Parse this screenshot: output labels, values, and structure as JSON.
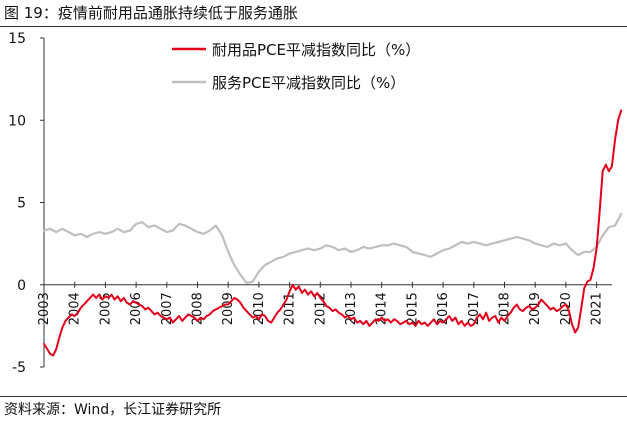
{
  "figure": {
    "title": "图 19：疫情前耐用品通胀持续低于服务通胀",
    "source": "资料来源：Wind，长江证券研究所"
  },
  "chart_data": {
    "type": "line",
    "ylim": [
      -5,
      15
    ],
    "y_ticks": [
      "15",
      "10",
      "5",
      "0",
      "-5"
    ],
    "x_ticks": [
      "2003",
      "2004",
      "2005",
      "2006",
      "2007",
      "2008",
      "2009",
      "2010",
      "2011",
      "2012",
      "2013",
      "2014",
      "2015",
      "2016",
      "2017",
      "2018",
      "2019",
      "2020",
      "2021"
    ],
    "grid": false,
    "legend_position": "top-center",
    "series": [
      {
        "name": "耐用品PCE平减指数同比（%）",
        "color": "#e3001b",
        "points": [
          [
            2003.0,
            -3.6
          ],
          [
            2003.1,
            -3.9
          ],
          [
            2003.2,
            -4.2
          ],
          [
            2003.3,
            -4.3
          ],
          [
            2003.4,
            -3.9
          ],
          [
            2003.5,
            -3.2
          ],
          [
            2003.6,
            -2.6
          ],
          [
            2003.7,
            -2.2
          ],
          [
            2003.8,
            -2.0
          ],
          [
            2003.9,
            -1.8
          ],
          [
            2004.0,
            -1.9
          ],
          [
            2004.1,
            -1.7
          ],
          [
            2004.2,
            -1.4
          ],
          [
            2004.3,
            -1.2
          ],
          [
            2004.4,
            -1.0
          ],
          [
            2004.5,
            -0.8
          ],
          [
            2004.6,
            -0.6
          ],
          [
            2004.7,
            -0.8
          ],
          [
            2004.8,
            -0.6
          ],
          [
            2004.9,
            -0.9
          ],
          [
            2005.0,
            -0.7
          ],
          [
            2005.1,
            -0.8
          ],
          [
            2005.2,
            -0.6
          ],
          [
            2005.3,
            -0.9
          ],
          [
            2005.4,
            -0.7
          ],
          [
            2005.5,
            -1.0
          ],
          [
            2005.6,
            -0.8
          ],
          [
            2005.7,
            -1.1
          ],
          [
            2005.8,
            -1.2
          ],
          [
            2005.9,
            -1.0
          ],
          [
            2006.0,
            -1.1
          ],
          [
            2006.1,
            -1.2
          ],
          [
            2006.2,
            -1.3
          ],
          [
            2006.3,
            -1.5
          ],
          [
            2006.4,
            -1.4
          ],
          [
            2006.5,
            -1.6
          ],
          [
            2006.6,
            -1.8
          ],
          [
            2006.7,
            -1.7
          ],
          [
            2006.8,
            -1.9
          ],
          [
            2006.9,
            -2.0
          ],
          [
            2007.0,
            -2.1
          ],
          [
            2007.1,
            -2.0
          ],
          [
            2007.2,
            -2.3
          ],
          [
            2007.3,
            -2.1
          ],
          [
            2007.4,
            -1.9
          ],
          [
            2007.5,
            -2.2
          ],
          [
            2007.6,
            -2.0
          ],
          [
            2007.7,
            -1.8
          ],
          [
            2007.8,
            -1.9
          ],
          [
            2007.9,
            -2.0
          ],
          [
            2008.0,
            -2.2
          ],
          [
            2008.1,
            -2.0
          ],
          [
            2008.2,
            -2.1
          ],
          [
            2008.3,
            -1.9
          ],
          [
            2008.4,
            -1.8
          ],
          [
            2008.5,
            -1.6
          ],
          [
            2008.6,
            -1.5
          ],
          [
            2008.7,
            -1.4
          ],
          [
            2008.8,
            -1.3
          ],
          [
            2008.9,
            -1.2
          ],
          [
            2009.0,
            -1.2
          ],
          [
            2009.1,
            -1.0
          ],
          [
            2009.2,
            -0.8
          ],
          [
            2009.3,
            -0.9
          ],
          [
            2009.4,
            -1.1
          ],
          [
            2009.5,
            -1.4
          ],
          [
            2009.6,
            -1.6
          ],
          [
            2009.7,
            -1.8
          ],
          [
            2009.8,
            -2.0
          ],
          [
            2009.9,
            -1.9
          ],
          [
            2010.0,
            -2.1
          ],
          [
            2010.1,
            -1.8
          ],
          [
            2010.2,
            -1.9
          ],
          [
            2010.3,
            -2.2
          ],
          [
            2010.4,
            -2.3
          ],
          [
            2010.5,
            -2.0
          ],
          [
            2010.6,
            -1.7
          ],
          [
            2010.7,
            -1.5
          ],
          [
            2010.8,
            -1.2
          ],
          [
            2010.9,
            -0.9
          ],
          [
            2011.0,
            -0.4
          ],
          [
            2011.1,
            0.0
          ],
          [
            2011.2,
            -0.3
          ],
          [
            2011.3,
            -0.1
          ],
          [
            2011.4,
            -0.5
          ],
          [
            2011.5,
            -0.3
          ],
          [
            2011.6,
            -0.6
          ],
          [
            2011.7,
            -0.4
          ],
          [
            2011.8,
            -0.7
          ],
          [
            2011.9,
            -0.5
          ],
          [
            2012.0,
            -0.8
          ],
          [
            2012.1,
            -1.0
          ],
          [
            2012.2,
            -1.3
          ],
          [
            2012.3,
            -1.4
          ],
          [
            2012.4,
            -1.6
          ],
          [
            2012.5,
            -1.5
          ],
          [
            2012.6,
            -1.7
          ],
          [
            2012.7,
            -1.8
          ],
          [
            2012.8,
            -2.0
          ],
          [
            2012.9,
            -1.9
          ],
          [
            2013.0,
            -2.1
          ],
          [
            2013.1,
            -2.0
          ],
          [
            2013.2,
            -2.3
          ],
          [
            2013.3,
            -2.2
          ],
          [
            2013.4,
            -2.4
          ],
          [
            2013.5,
            -2.2
          ],
          [
            2013.6,
            -2.5
          ],
          [
            2013.7,
            -2.3
          ],
          [
            2013.8,
            -2.1
          ],
          [
            2013.9,
            -2.2
          ],
          [
            2014.0,
            -2.0
          ],
          [
            2014.1,
            -2.2
          ],
          [
            2014.2,
            -2.1
          ],
          [
            2014.3,
            -2.3
          ],
          [
            2014.4,
            -2.1
          ],
          [
            2014.5,
            -2.2
          ],
          [
            2014.6,
            -2.4
          ],
          [
            2014.7,
            -2.3
          ],
          [
            2014.8,
            -2.2
          ],
          [
            2014.9,
            -2.4
          ],
          [
            2015.0,
            -2.3
          ],
          [
            2015.1,
            -2.5
          ],
          [
            2015.2,
            -2.2
          ],
          [
            2015.3,
            -2.4
          ],
          [
            2015.4,
            -2.3
          ],
          [
            2015.5,
            -2.5
          ],
          [
            2015.6,
            -2.3
          ],
          [
            2015.7,
            -2.1
          ],
          [
            2015.8,
            -2.4
          ],
          [
            2015.9,
            -2.2
          ],
          [
            2016.0,
            -2.3
          ],
          [
            2016.1,
            -2.1
          ],
          [
            2016.2,
            -1.9
          ],
          [
            2016.3,
            -2.2
          ],
          [
            2016.4,
            -2.0
          ],
          [
            2016.5,
            -2.4
          ],
          [
            2016.6,
            -2.2
          ],
          [
            2016.7,
            -2.5
          ],
          [
            2016.8,
            -2.3
          ],
          [
            2016.9,
            -2.5
          ],
          [
            2017.0,
            -2.4
          ],
          [
            2017.1,
            -2.0
          ],
          [
            2017.2,
            -1.8
          ],
          [
            2017.3,
            -2.1
          ],
          [
            2017.4,
            -1.7
          ],
          [
            2017.5,
            -2.2
          ],
          [
            2017.6,
            -2.0
          ],
          [
            2017.7,
            -1.9
          ],
          [
            2017.8,
            -2.3
          ],
          [
            2017.9,
            -2.0
          ],
          [
            2018.0,
            -2.2
          ],
          [
            2018.1,
            -1.9
          ],
          [
            2018.2,
            -1.7
          ],
          [
            2018.3,
            -1.4
          ],
          [
            2018.4,
            -1.2
          ],
          [
            2018.5,
            -1.5
          ],
          [
            2018.6,
            -1.6
          ],
          [
            2018.7,
            -1.4
          ],
          [
            2018.8,
            -1.3
          ],
          [
            2018.9,
            -1.5
          ],
          [
            2019.0,
            -1.4
          ],
          [
            2019.1,
            -1.2
          ],
          [
            2019.2,
            -0.9
          ],
          [
            2019.3,
            -1.1
          ],
          [
            2019.4,
            -1.3
          ],
          [
            2019.5,
            -1.5
          ],
          [
            2019.6,
            -1.4
          ],
          [
            2019.7,
            -1.6
          ],
          [
            2019.8,
            -1.5
          ],
          [
            2019.9,
            -1.3
          ],
          [
            2020.0,
            -1.2
          ],
          [
            2020.1,
            -1.6
          ],
          [
            2020.2,
            -2.4
          ],
          [
            2020.3,
            -2.9
          ],
          [
            2020.4,
            -2.6
          ],
          [
            2020.5,
            -1.4
          ],
          [
            2020.6,
            -0.2
          ],
          [
            2020.7,
            0.2
          ],
          [
            2020.8,
            0.3
          ],
          [
            2020.9,
            1.0
          ],
          [
            2021.0,
            2.2
          ],
          [
            2021.1,
            4.5
          ],
          [
            2021.2,
            6.9
          ],
          [
            2021.3,
            7.3
          ],
          [
            2021.4,
            6.9
          ],
          [
            2021.5,
            7.2
          ],
          [
            2021.6,
            8.8
          ],
          [
            2021.7,
            10.0
          ],
          [
            2021.8,
            10.6
          ]
        ]
      },
      {
        "name": "服务PCE平减指数同比（%）",
        "color": "#bfbfbf",
        "points": [
          [
            2003.0,
            3.3
          ],
          [
            2003.2,
            3.4
          ],
          [
            2003.4,
            3.2
          ],
          [
            2003.6,
            3.4
          ],
          [
            2003.8,
            3.2
          ],
          [
            2004.0,
            3.0
          ],
          [
            2004.2,
            3.1
          ],
          [
            2004.4,
            2.9
          ],
          [
            2004.6,
            3.1
          ],
          [
            2004.8,
            3.2
          ],
          [
            2005.0,
            3.1
          ],
          [
            2005.2,
            3.2
          ],
          [
            2005.4,
            3.4
          ],
          [
            2005.6,
            3.2
          ],
          [
            2005.8,
            3.3
          ],
          [
            2006.0,
            3.7
          ],
          [
            2006.2,
            3.8
          ],
          [
            2006.4,
            3.5
          ],
          [
            2006.6,
            3.6
          ],
          [
            2006.8,
            3.4
          ],
          [
            2007.0,
            3.2
          ],
          [
            2007.2,
            3.3
          ],
          [
            2007.4,
            3.7
          ],
          [
            2007.6,
            3.6
          ],
          [
            2007.8,
            3.4
          ],
          [
            2008.0,
            3.2
          ],
          [
            2008.2,
            3.1
          ],
          [
            2008.4,
            3.3
          ],
          [
            2008.6,
            3.6
          ],
          [
            2008.8,
            3.0
          ],
          [
            2009.0,
            2.0
          ],
          [
            2009.2,
            1.2
          ],
          [
            2009.4,
            0.6
          ],
          [
            2009.6,
            0.1
          ],
          [
            2009.8,
            0.2
          ],
          [
            2010.0,
            0.8
          ],
          [
            2010.2,
            1.2
          ],
          [
            2010.4,
            1.4
          ],
          [
            2010.6,
            1.6
          ],
          [
            2010.8,
            1.7
          ],
          [
            2011.0,
            1.9
          ],
          [
            2011.2,
            2.0
          ],
          [
            2011.4,
            2.1
          ],
          [
            2011.6,
            2.2
          ],
          [
            2011.8,
            2.1
          ],
          [
            2012.0,
            2.2
          ],
          [
            2012.2,
            2.4
          ],
          [
            2012.4,
            2.3
          ],
          [
            2012.6,
            2.1
          ],
          [
            2012.8,
            2.2
          ],
          [
            2013.0,
            2.0
          ],
          [
            2013.2,
            2.1
          ],
          [
            2013.4,
            2.3
          ],
          [
            2013.6,
            2.2
          ],
          [
            2013.8,
            2.3
          ],
          [
            2014.0,
            2.4
          ],
          [
            2014.2,
            2.4
          ],
          [
            2014.4,
            2.5
          ],
          [
            2014.6,
            2.4
          ],
          [
            2014.8,
            2.3
          ],
          [
            2015.0,
            2.0
          ],
          [
            2015.2,
            1.9
          ],
          [
            2015.4,
            1.8
          ],
          [
            2015.6,
            1.7
          ],
          [
            2015.8,
            1.9
          ],
          [
            2016.0,
            2.1
          ],
          [
            2016.2,
            2.2
          ],
          [
            2016.4,
            2.4
          ],
          [
            2016.6,
            2.6
          ],
          [
            2016.8,
            2.5
          ],
          [
            2017.0,
            2.6
          ],
          [
            2017.2,
            2.5
          ],
          [
            2017.4,
            2.4
          ],
          [
            2017.6,
            2.5
          ],
          [
            2017.8,
            2.6
          ],
          [
            2018.0,
            2.7
          ],
          [
            2018.2,
            2.8
          ],
          [
            2018.4,
            2.9
          ],
          [
            2018.6,
            2.8
          ],
          [
            2018.8,
            2.7
          ],
          [
            2019.0,
            2.5
          ],
          [
            2019.2,
            2.4
          ],
          [
            2019.4,
            2.3
          ],
          [
            2019.6,
            2.5
          ],
          [
            2019.8,
            2.4
          ],
          [
            2020.0,
            2.5
          ],
          [
            2020.2,
            2.1
          ],
          [
            2020.4,
            1.8
          ],
          [
            2020.6,
            2.0
          ],
          [
            2020.8,
            2.0
          ],
          [
            2021.0,
            2.3
          ],
          [
            2021.2,
            3.0
          ],
          [
            2021.4,
            3.5
          ],
          [
            2021.6,
            3.6
          ],
          [
            2021.8,
            4.3
          ]
        ]
      }
    ]
  }
}
